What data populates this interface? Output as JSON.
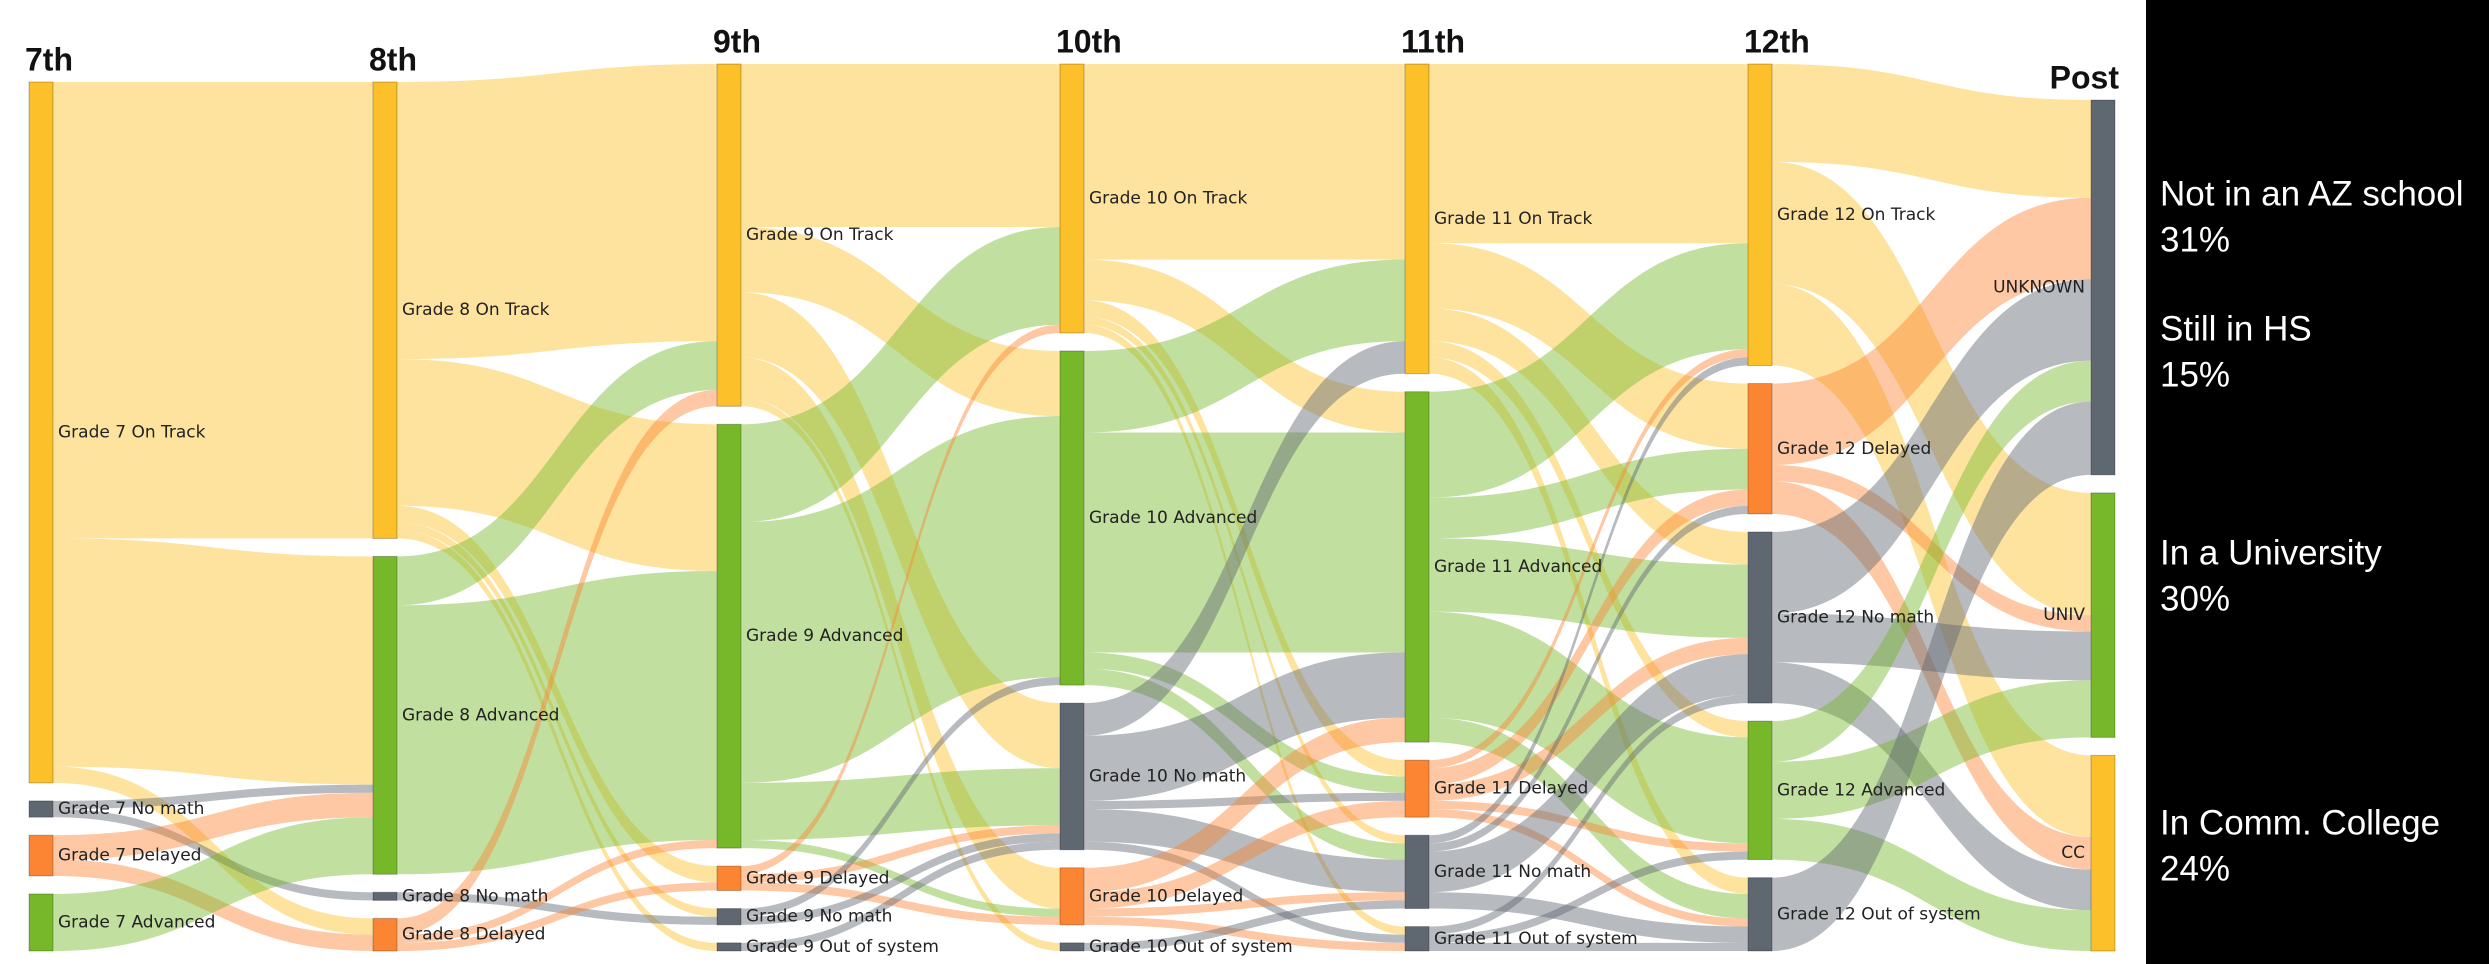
{
  "chart_data": {
    "type": "sankey",
    "columns": [
      {
        "name": "7th",
        "nodes": [
          {
            "label": "Grade 7 On Track",
            "value": 86,
            "color": "#fcc02a"
          },
          {
            "label": "Grade 7 No math",
            "value": 2,
            "color": "#5f6770"
          },
          {
            "label": "Grade 7 Delayed",
            "value": 5,
            "color": "#fb8532"
          },
          {
            "label": "Grade 7 Advanced",
            "value": 7,
            "color": "#76b82a"
          }
        ]
      },
      {
        "name": "8th",
        "nodes": [
          {
            "label": "Grade 8 On Track",
            "value": 56,
            "color": "#fcc02a"
          },
          {
            "label": "Grade 8 Advanced",
            "value": 39,
            "color": "#76b82a"
          },
          {
            "label": "Grade 8 No math",
            "value": 1,
            "color": "#5f6770"
          },
          {
            "label": "Grade 8 Delayed",
            "value": 4,
            "color": "#fb8532"
          }
        ]
      },
      {
        "name": "9th",
        "nodes": [
          {
            "label": "Grade 9 On Track",
            "value": 42,
            "color": "#fcc02a"
          },
          {
            "label": "Grade 9 Advanced",
            "value": 52,
            "color": "#76b82a"
          },
          {
            "label": "Grade 9 Delayed",
            "value": 3,
            "color": "#fb8532"
          },
          {
            "label": "Grade 9 No math",
            "value": 2,
            "color": "#5f6770"
          },
          {
            "label": "Grade 9 Out of system",
            "value": 1,
            "color": "#5f6770"
          }
        ]
      },
      {
        "name": "10th",
        "nodes": [
          {
            "label": "Grade 10 On Track",
            "value": 33,
            "color": "#fcc02a"
          },
          {
            "label": "Grade 10 Advanced",
            "value": 41,
            "color": "#76b82a"
          },
          {
            "label": "Grade 10 No math",
            "value": 18,
            "color": "#5f6770"
          },
          {
            "label": "Grade 10 Delayed",
            "value": 7,
            "color": "#fb8532"
          },
          {
            "label": "Grade 10 Out of system",
            "value": 1,
            "color": "#5f6770"
          }
        ]
      },
      {
        "name": "11th",
        "nodes": [
          {
            "label": "Grade 11 On Track",
            "value": 38,
            "color": "#fcc02a"
          },
          {
            "label": "Grade 11 Advanced",
            "value": 43,
            "color": "#76b82a"
          },
          {
            "label": "Grade 11 Delayed",
            "value": 7,
            "color": "#fb8532"
          },
          {
            "label": "Grade 11 No math",
            "value": 9,
            "color": "#5f6770"
          },
          {
            "label": "Grade 11 Out of system",
            "value": 3,
            "color": "#5f6770"
          }
        ]
      },
      {
        "name": "12th",
        "nodes": [
          {
            "label": "Grade 12 On Track",
            "value": 37,
            "color": "#fcc02a"
          },
          {
            "label": "Grade 12 Delayed",
            "value": 16,
            "color": "#fb8532"
          },
          {
            "label": "Grade 12 No math",
            "value": 21,
            "color": "#5f6770"
          },
          {
            "label": "Grade 12 Advanced",
            "value": 17,
            "color": "#76b82a"
          },
          {
            "label": "Grade 12 Out of system",
            "value": 9,
            "color": "#5f6770"
          }
        ]
      },
      {
        "name": "Post",
        "nodes": [
          {
            "label": "UNKNOWN",
            "value": 46,
            "color": "#5f6770"
          },
          {
            "label": "UNIV",
            "value": 30,
            "color": "#76b82a"
          },
          {
            "label": "CC",
            "value": 24,
            "color": "#fcc02a"
          }
        ]
      }
    ],
    "links": [
      {
        "source": "Grade 7 On Track",
        "target": "Grade 8 On Track",
        "value": 56
      },
      {
        "source": "Grade 7 On Track",
        "target": "Grade 8 Advanced",
        "value": 28
      },
      {
        "source": "Grade 7 On Track",
        "target": "Grade 8 Delayed",
        "value": 2
      },
      {
        "source": "Grade 7 No math",
        "target": "Grade 8 Advanced",
        "value": 1
      },
      {
        "source": "Grade 7 No math",
        "target": "Grade 8 No math",
        "value": 1
      },
      {
        "source": "Grade 7 Delayed",
        "target": "Grade 8 Advanced",
        "value": 3
      },
      {
        "source": "Grade 7 Delayed",
        "target": "Grade 8 Delayed",
        "value": 2
      },
      {
        "source": "Grade 7 Advanced",
        "target": "Grade 8 Advanced",
        "value": 7
      },
      {
        "source": "Grade 8 On Track",
        "target": "Grade 9 On Track",
        "value": 34
      },
      {
        "source": "Grade 8 On Track",
        "target": "Grade 9 Advanced",
        "value": 18
      },
      {
        "source": "Grade 8 On Track",
        "target": "Grade 9 Delayed",
        "value": 2
      },
      {
        "source": "Grade 8 On Track",
        "target": "Grade 9 No math",
        "value": 1
      },
      {
        "source": "Grade 8 On Track",
        "target": "Grade 9 Out of system",
        "value": 1
      },
      {
        "source": "Grade 8 Advanced",
        "target": "Grade 9 On Track",
        "value": 6
      },
      {
        "source": "Grade 8 Advanced",
        "target": "Grade 9 Advanced",
        "value": 33
      },
      {
        "source": "Grade 8 No math",
        "target": "Grade 9 No math",
        "value": 1
      },
      {
        "source": "Grade 8 Delayed",
        "target": "Grade 9 On Track",
        "value": 2
      },
      {
        "source": "Grade 8 Delayed",
        "target": "Grade 9 Advanced",
        "value": 1
      },
      {
        "source": "Grade 8 Delayed",
        "target": "Grade 9 Delayed",
        "value": 1
      },
      {
        "source": "Grade 9 On Track",
        "target": "Grade 10 On Track",
        "value": 20
      },
      {
        "source": "Grade 9 On Track",
        "target": "Grade 10 Advanced",
        "value": 8
      },
      {
        "source": "Grade 9 On Track",
        "target": "Grade 10 No math",
        "value": 8
      },
      {
        "source": "Grade 9 On Track",
        "target": "Grade 10 Delayed",
        "value": 5
      },
      {
        "source": "Grade 9 On Track",
        "target": "Grade 10 Out of system",
        "value": 1
      },
      {
        "source": "Grade 9 Advanced",
        "target": "Grade 10 On Track",
        "value": 12
      },
      {
        "source": "Grade 9 Advanced",
        "target": "Grade 10 Advanced",
        "value": 32
      },
      {
        "source": "Grade 9 Advanced",
        "target": "Grade 10 No math",
        "value": 7
      },
      {
        "source": "Grade 9 Advanced",
        "target": "Grade 10 Delayed",
        "value": 1
      },
      {
        "source": "Grade 9 Delayed",
        "target": "Grade 10 On Track",
        "value": 1
      },
      {
        "source": "Grade 9 Delayed",
        "target": "Grade 10 No math",
        "value": 1
      },
      {
        "source": "Grade 9 Delayed",
        "target": "Grade 10 Delayed",
        "value": 1
      },
      {
        "source": "Grade 9 No math",
        "target": "Grade 10 Advanced",
        "value": 1
      },
      {
        "source": "Grade 9 No math",
        "target": "Grade 10 No math",
        "value": 1
      },
      {
        "source": "Grade 9 Out of system",
        "target": "Grade 10 No math",
        "value": 1
      },
      {
        "source": "Grade 10 On Track",
        "target": "Grade 11 On Track",
        "value": 24
      },
      {
        "source": "Grade 10 On Track",
        "target": "Grade 11 Advanced",
        "value": 5
      },
      {
        "source": "Grade 10 On Track",
        "target": "Grade 11 Delayed",
        "value": 2
      },
      {
        "source": "Grade 10 On Track",
        "target": "Grade 11 No math",
        "value": 1
      },
      {
        "source": "Grade 10 On Track",
        "target": "Grade 11 Out of system",
        "value": 1
      },
      {
        "source": "Grade 10 Advanced",
        "target": "Grade 11 On Track",
        "value": 10
      },
      {
        "source": "Grade 10 Advanced",
        "target": "Grade 11 Advanced",
        "value": 27
      },
      {
        "source": "Grade 10 Advanced",
        "target": "Grade 11 Delayed",
        "value": 2
      },
      {
        "source": "Grade 10 Advanced",
        "target": "Grade 11 No math",
        "value": 2
      },
      {
        "source": "Grade 10 No math",
        "target": "Grade 11 On Track",
        "value": 4
      },
      {
        "source": "Grade 10 No math",
        "target": "Grade 11 Advanced",
        "value": 8
      },
      {
        "source": "Grade 10 No math",
        "target": "Grade 11 Delayed",
        "value": 1
      },
      {
        "source": "Grade 10 No math",
        "target": "Grade 11 No math",
        "value": 4
      },
      {
        "source": "Grade 10 No math",
        "target": "Grade 11 Out of system",
        "value": 1
      },
      {
        "source": "Grade 10 Delayed",
        "target": "Grade 11 Advanced",
        "value": 3
      },
      {
        "source": "Grade 10 Delayed",
        "target": "Grade 11 Delayed",
        "value": 2
      },
      {
        "source": "Grade 10 Delayed",
        "target": "Grade 11 No math",
        "value": 1
      },
      {
        "source": "Grade 10 Delayed",
        "target": "Grade 11 Out of system",
        "value": 1
      },
      {
        "source": "Grade 10 Out of system",
        "target": "Grade 11 No math",
        "value": 1
      },
      {
        "source": "Grade 11 On Track",
        "target": "Grade 12 On Track",
        "value": 22
      },
      {
        "source": "Grade 11 On Track",
        "target": "Grade 12 Delayed",
        "value": 8
      },
      {
        "source": "Grade 11 On Track",
        "target": "Grade 12 No math",
        "value": 4
      },
      {
        "source": "Grade 11 On Track",
        "target": "Grade 12 Advanced",
        "value": 2
      },
      {
        "source": "Grade 11 On Track",
        "target": "Grade 12 Out of system",
        "value": 2
      },
      {
        "source": "Grade 11 Advanced",
        "target": "Grade 12 On Track",
        "value": 13
      },
      {
        "source": "Grade 11 Advanced",
        "target": "Grade 12 Delayed",
        "value": 5
      },
      {
        "source": "Grade 11 Advanced",
        "target": "Grade 12 No math",
        "value": 9
      },
      {
        "source": "Grade 11 Advanced",
        "target": "Grade 12 Advanced",
        "value": 13
      },
      {
        "source": "Grade 11 Advanced",
        "target": "Grade 12 Out of system",
        "value": 3
      },
      {
        "source": "Grade 11 Delayed",
        "target": "Grade 12 On Track",
        "value": 1
      },
      {
        "source": "Grade 11 Delayed",
        "target": "Grade 12 Delayed",
        "value": 2
      },
      {
        "source": "Grade 11 Delayed",
        "target": "Grade 12 No math",
        "value": 2
      },
      {
        "source": "Grade 11 Delayed",
        "target": "Grade 12 Advanced",
        "value": 1
      },
      {
        "source": "Grade 11 Delayed",
        "target": "Grade 12 Out of system",
        "value": 1
      },
      {
        "source": "Grade 11 No math",
        "target": "Grade 12 On Track",
        "value": 1
      },
      {
        "source": "Grade 11 No math",
        "target": "Grade 12 Delayed",
        "value": 1
      },
      {
        "source": "Grade 11 No math",
        "target": "Grade 12 No math",
        "value": 5
      },
      {
        "source": "Grade 11 No math",
        "target": "Grade 12 Out of system",
        "value": 2
      },
      {
        "source": "Grade 11 Out of system",
        "target": "Grade 12 No math",
        "value": 1
      },
      {
        "source": "Grade 11 Out of system",
        "target": "Grade 12 Advanced",
        "value": 1
      },
      {
        "source": "Grade 11 Out of system",
        "target": "Grade 12 Out of system",
        "value": 1
      },
      {
        "source": "Grade 12 On Track",
        "target": "UNKNOWN",
        "value": 12
      },
      {
        "source": "Grade 12 On Track",
        "target": "UNIV",
        "value": 15
      },
      {
        "source": "Grade 12 On Track",
        "target": "CC",
        "value": 10
      },
      {
        "source": "Grade 12 Delayed",
        "target": "UNKNOWN",
        "value": 10
      },
      {
        "source": "Grade 12 Delayed",
        "target": "UNIV",
        "value": 2
      },
      {
        "source": "Grade 12 Delayed",
        "target": "CC",
        "value": 4
      },
      {
        "source": "Grade 12 No math",
        "target": "UNKNOWN",
        "value": 10
      },
      {
        "source": "Grade 12 No math",
        "target": "UNIV",
        "value": 6
      },
      {
        "source": "Grade 12 No math",
        "target": "CC",
        "value": 5
      },
      {
        "source": "Grade 12 Advanced",
        "target": "UNKNOWN",
        "value": 5
      },
      {
        "source": "Grade 12 Advanced",
        "target": "UNIV",
        "value": 7
      },
      {
        "source": "Grade 12 Advanced",
        "target": "CC",
        "value": 5
      },
      {
        "source": "Grade 12 Out of system",
        "target": "UNKNOWN",
        "value": 9
      }
    ],
    "annotations": [
      {
        "text": "Not in an AZ school",
        "value": 31,
        "value_label": "31%"
      },
      {
        "text": "Still in HS",
        "value": 15,
        "value_label": "15%"
      },
      {
        "text": "In a University",
        "value": 30,
        "value_label": "30%"
      },
      {
        "text": "In Comm. College",
        "value": 24,
        "value_label": "24%"
      }
    ]
  }
}
